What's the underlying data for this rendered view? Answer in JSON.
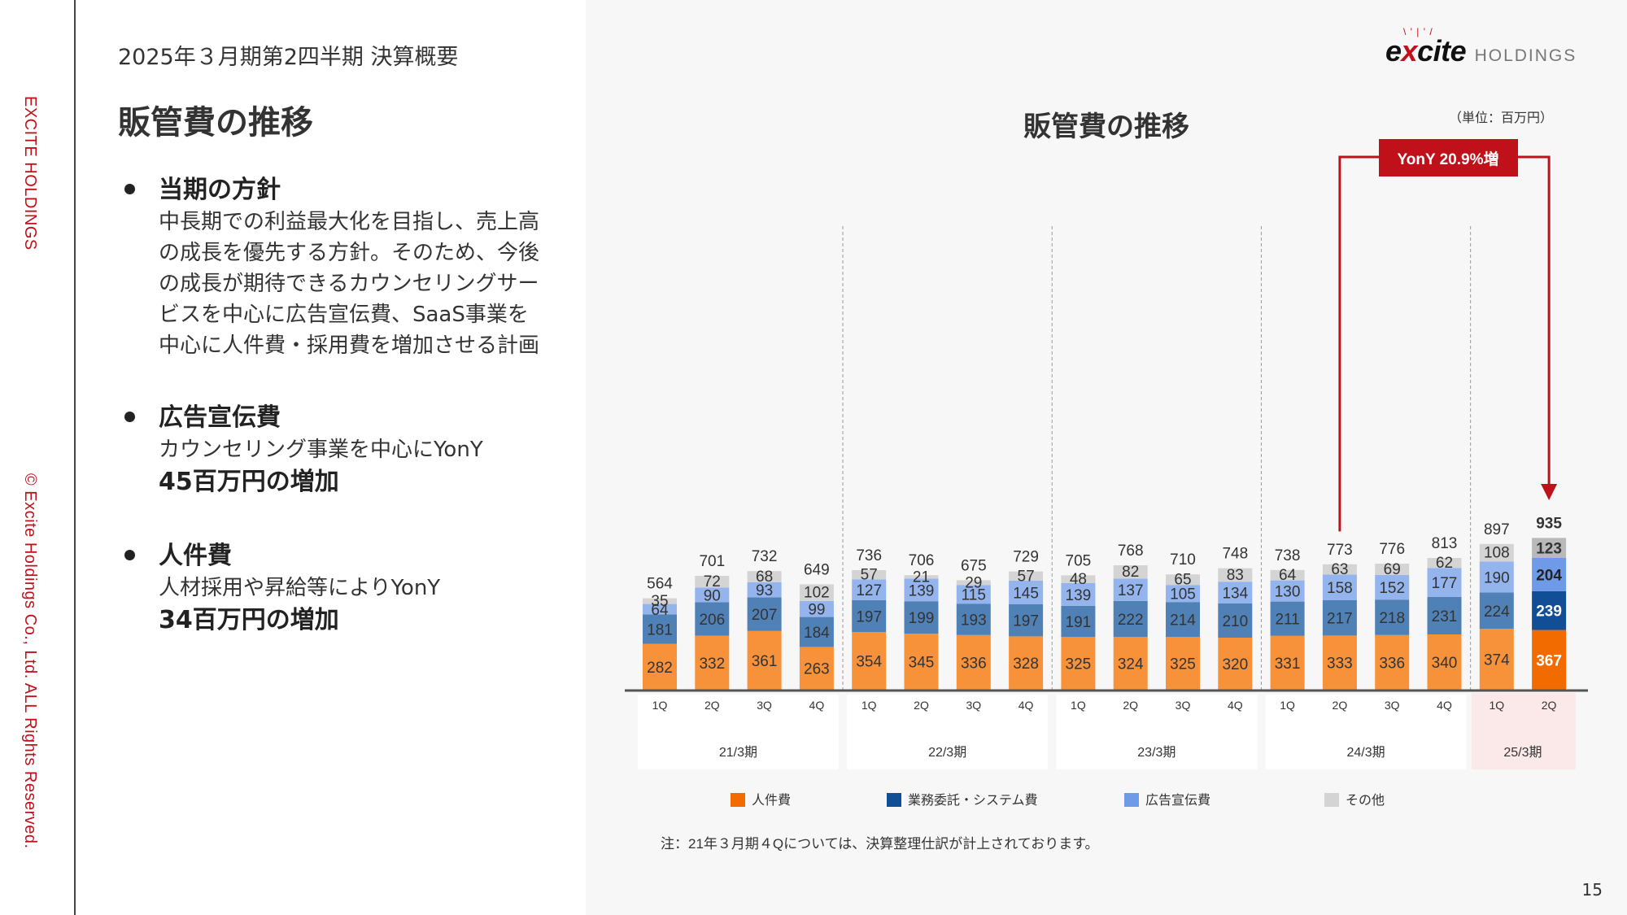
{
  "rail": {
    "brand": "EXCITE HOLDINGS",
    "copyright": "© Excite Holdings Co., Ltd. ALL Rights Reserved."
  },
  "header": {
    "subtitle": "2025年３月期第2四半期 決算概要",
    "title": "販管費の推移"
  },
  "logo": {
    "main_pre": "e",
    "main_x": "x",
    "main_post": "cite",
    "sub": "HOLDINGS"
  },
  "bullets": [
    {
      "heading": "当期の方針",
      "lines": [
        "中長期での利益最大化を目指し、売上高",
        "の成長を優先する方針。そのため、今後",
        "の成長が期待できるカウンセリングサー",
        "ビスを中心に広告宣伝費、SaaS事業を",
        "中心に人件費・採用費を増加させる計画"
      ],
      "emphasis": ""
    },
    {
      "heading": "広告宣伝費",
      "lines": [
        "カウンセリング事業を中心にYonY"
      ],
      "emphasis": "45百万円の増加"
    },
    {
      "heading": "人件費",
      "lines": [
        "人材採用や昇給等によりYonY"
      ],
      "emphasis": "34百万円の増加"
    }
  ],
  "page_number": "15",
  "chart_data": {
    "type": "bar",
    "stacked": true,
    "title": "販管費の推移",
    "unit_note": "（単位：百万円）",
    "callout": "YonY 20.9%増",
    "note": "注：21年３月期４Qについては、決算整理仕訳が計上されております。",
    "categories": [
      "1Q",
      "2Q",
      "3Q",
      "4Q",
      "1Q",
      "2Q",
      "3Q",
      "4Q",
      "1Q",
      "2Q",
      "3Q",
      "4Q",
      "1Q",
      "2Q",
      "3Q",
      "4Q",
      "1Q",
      "2Q"
    ],
    "groups": [
      "21/3期",
      "22/3期",
      "23/3期",
      "24/3期",
      "25/3期"
    ],
    "totals": [
      564,
      701,
      732,
      649,
      736,
      706,
      675,
      729,
      705,
      768,
      710,
      748,
      738,
      773,
      776,
      813,
      897,
      935
    ],
    "series": [
      {
        "name": "人件費",
        "color": "#f7923a",
        "highlight_color": "#f26b00",
        "values": [
          282,
          332,
          361,
          263,
          354,
          345,
          336,
          328,
          325,
          324,
          325,
          320,
          331,
          333,
          336,
          340,
          374,
          367
        ]
      },
      {
        "name": "業務委託・システム費",
        "color": "#4f81b7",
        "highlight_color": "#114e96",
        "values": [
          181,
          206,
          207,
          184,
          197,
          199,
          193,
          197,
          191,
          222,
          214,
          210,
          211,
          217,
          218,
          231,
          224,
          239
        ]
      },
      {
        "name": "広告宣伝費",
        "color": "#93b4ed",
        "highlight_color": "#6f9ae8",
        "values": [
          64,
          90,
          93,
          99,
          127,
          139,
          115,
          145,
          139,
          137,
          105,
          134,
          130,
          158,
          152,
          177,
          190,
          204
        ]
      },
      {
        "name": "その他",
        "color": "#d4d4d4",
        "highlight_color": "#b9b9b9",
        "values": [
          35,
          72,
          68,
          102,
          57,
          21,
          29,
          57,
          48,
          82,
          65,
          83,
          64,
          63,
          69,
          62,
          108,
          123
        ]
      }
    ],
    "legend": [
      "人件費",
      "業務委託・システム費",
      "広告宣伝費",
      "その他"
    ],
    "legend_colors": [
      "#f26b00",
      "#114e96",
      "#6f9ae8",
      "#d4d4d4"
    ],
    "accent": "#c0101a"
  }
}
